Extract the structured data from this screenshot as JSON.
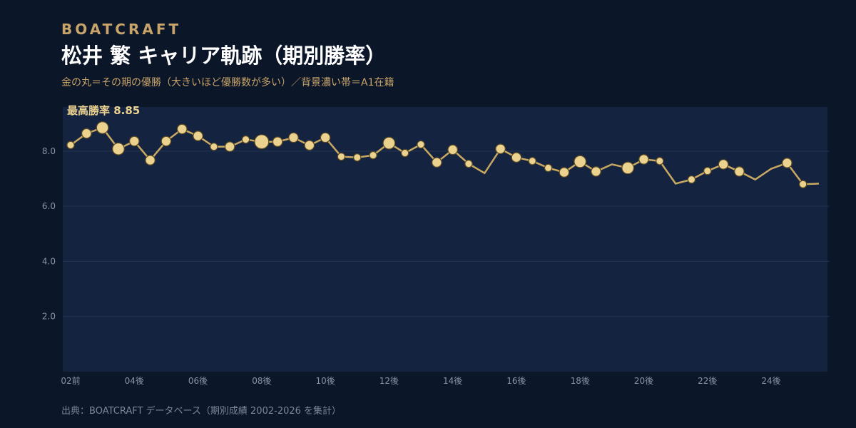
{
  "brand": "BOATCRAFT",
  "chart_data": {
    "type": "line",
    "title": "松井 繁  キャリア軌跡（期別勝率）",
    "subtitle": "金の丸＝その期の優勝（大きいほど優勝数が多い）／背景濃い帯＝A1在籍",
    "annotation": "最高勝率 8.85",
    "source": "出典：BOATCRAFT データベース（期別成績 2002-2026 を集計）",
    "categories": [
      "02前",
      null,
      null,
      null,
      "04後",
      null,
      null,
      null,
      "06後",
      null,
      null,
      null,
      "08後",
      null,
      null,
      null,
      "10後",
      null,
      null,
      null,
      "12後",
      null,
      null,
      null,
      "14後",
      null,
      null,
      null,
      "16後",
      null,
      null,
      null,
      "18後",
      null,
      null,
      null,
      "20後",
      null,
      null,
      null,
      "22後",
      null,
      null,
      null,
      "24後",
      null,
      null,
      null
    ],
    "series": [
      {
        "name": "勝率",
        "color": "#c9a961",
        "marker_color": "#ecd28f",
        "values": [
          8.22,
          8.64,
          8.85,
          8.08,
          8.36,
          7.67,
          8.36,
          8.8,
          8.55,
          8.16,
          8.16,
          8.42,
          8.34,
          8.34,
          8.49,
          8.21,
          8.49,
          7.8,
          7.77,
          7.85,
          8.29,
          7.93,
          8.24,
          7.59,
          8.05,
          7.54,
          7.2,
          8.08,
          7.77,
          7.64,
          7.39,
          7.23,
          7.62,
          7.26,
          7.52,
          7.39,
          7.7,
          7.64,
          6.82,
          6.97,
          7.28,
          7.52,
          7.26,
          6.97,
          7.36,
          7.57,
          6.8,
          6.82
        ],
        "sizes": [
          1,
          2,
          3,
          3,
          2,
          2,
          2,
          2,
          2,
          1,
          2,
          1,
          4,
          2,
          2,
          2,
          2,
          1,
          1,
          1,
          3,
          1,
          1,
          2,
          2,
          1,
          0,
          2,
          2,
          1,
          1,
          2,
          3,
          2,
          0,
          3,
          2,
          1,
          0,
          1,
          1,
          2,
          2,
          0,
          0,
          2,
          1,
          0
        ]
      }
    ],
    "ylim": [
      0,
      9.6
    ],
    "yticks": [
      {
        "value": 2,
        "label": "2.0"
      },
      {
        "value": 4,
        "label": "4.0"
      },
      {
        "value": 6,
        "label": "6.0"
      },
      {
        "value": 8,
        "label": "8.0"
      }
    ],
    "grid": true
  }
}
